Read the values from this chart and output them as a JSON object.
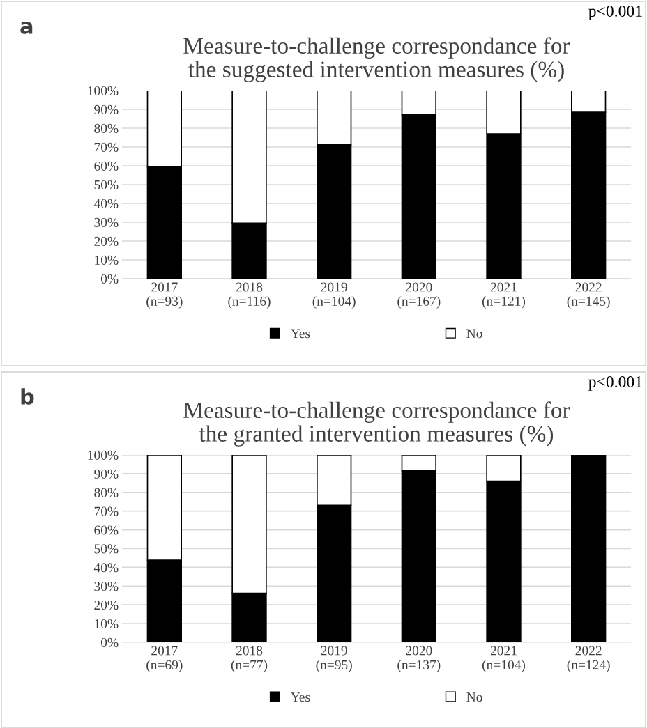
{
  "chart_data": [
    {
      "type": "bar",
      "stacked": true,
      "title": "Measure-to-challenge correspondance for\nthe suggested intervention measures (%)",
      "categories": [
        "2017\n(n=93)",
        "2018\n(n=116)",
        "2019\n(n=104)",
        "2020\n(n=167)",
        "2021\n(n=121)",
        "2022\n(n=145)"
      ],
      "series": [
        {
          "name": "Yes",
          "color": "#000000",
          "values": [
            59.4,
            29.5,
            71.2,
            87.1,
            77.0,
            88.5
          ]
        },
        {
          "name": "No",
          "color": "#ffffff",
          "values": [
            40.6,
            70.5,
            28.8,
            12.9,
            23.0,
            11.5
          ]
        }
      ],
      "ylim": [
        0,
        100
      ],
      "yticks": [
        {
          "value": 0,
          "label": "0%"
        },
        {
          "value": 10,
          "label": "10%"
        },
        {
          "value": 20,
          "label": "20%"
        },
        {
          "value": 30,
          "label": "30%"
        },
        {
          "value": 40,
          "label": "40%"
        },
        {
          "value": 50,
          "label": "50%"
        },
        {
          "value": 60,
          "label": "60%"
        },
        {
          "value": 70,
          "label": "70%"
        },
        {
          "value": 80,
          "label": "80%"
        },
        {
          "value": 90,
          "label": "90%"
        },
        {
          "value": 100,
          "label": "100%"
        }
      ],
      "grid": "y",
      "legend": "bottom",
      "annotations": [
        "a",
        "p<0.001"
      ]
    },
    {
      "type": "bar",
      "stacked": true,
      "title": "Measure-to-challenge correspondance for\nthe granted intervention measures (%)",
      "categories": [
        "2017\n(n=69)",
        "2018\n(n=77)",
        "2019\n(n=95)",
        "2020\n(n=137)",
        "2021\n(n=104)",
        "2022\n(n=124)"
      ],
      "series": [
        {
          "name": "Yes",
          "color": "#000000",
          "values": [
            43.8,
            26.2,
            73.1,
            91.6,
            86.0,
            100
          ]
        },
        {
          "name": "No",
          "color": "#ffffff",
          "values": [
            56.2,
            73.8,
            26.9,
            8.4,
            14.0,
            null
          ]
        }
      ],
      "ylim": [
        0,
        100
      ],
      "yticks": [
        {
          "value": 0,
          "label": "0%"
        },
        {
          "value": 10,
          "label": "10%"
        },
        {
          "value": 20,
          "label": "20%"
        },
        {
          "value": 30,
          "label": "30%"
        },
        {
          "value": 40,
          "label": "40%"
        },
        {
          "value": 50,
          "label": "50%"
        },
        {
          "value": 60,
          "label": "60%"
        },
        {
          "value": 70,
          "label": "70%"
        },
        {
          "value": 80,
          "label": "80%"
        },
        {
          "value": 90,
          "label": "90%"
        },
        {
          "value": 100,
          "label": "100%"
        }
      ],
      "grid": "y",
      "legend": "bottom",
      "annotations": [
        "b",
        "p<0.001"
      ]
    }
  ]
}
